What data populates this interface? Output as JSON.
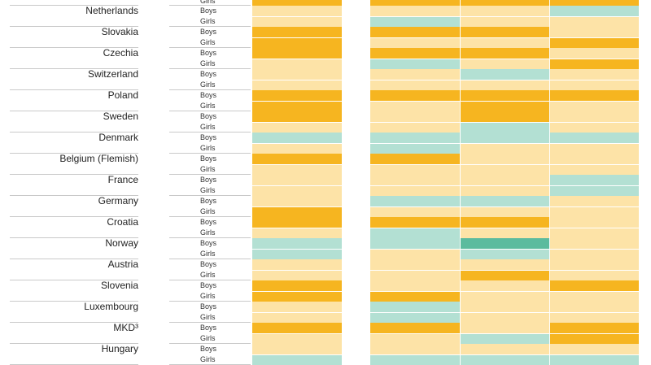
{
  "colors": {
    "high": "#f6b520",
    "mid": "#fde3a7",
    "low": "#b3e0d3",
    "lowest": "#5bbb9e"
  },
  "chart_data": {
    "type": "heatmap",
    "top_partial_row": {
      "gender": "Girls",
      "values": [
        "high",
        "high",
        "high",
        "high"
      ]
    },
    "rows": [
      {
        "country": "Netherlands",
        "boys": [
          "mid",
          "mid",
          "mid",
          "low"
        ],
        "girls": [
          "mid",
          "low",
          "mid",
          "mid"
        ]
      },
      {
        "country": "Slovakia",
        "boys": [
          "high",
          "high",
          "high",
          "mid"
        ],
        "girls": [
          "high",
          "mid",
          "mid",
          "high"
        ]
      },
      {
        "country": "Czechia",
        "boys": [
          "high",
          "high",
          "high",
          "mid"
        ],
        "girls": [
          "mid",
          "low",
          "mid",
          "high"
        ]
      },
      {
        "country": "Switzerland",
        "boys": [
          "mid",
          "mid",
          "low",
          "mid"
        ],
        "girls": [
          "mid",
          "mid",
          "mid",
          "mid"
        ]
      },
      {
        "country": "Poland",
        "boys": [
          "high",
          "high",
          "high",
          "high"
        ],
        "girls": [
          "high",
          "mid",
          "high",
          "mid"
        ]
      },
      {
        "country": "Sweden",
        "boys": [
          "high",
          "mid",
          "high",
          "mid"
        ],
        "girls": [
          "mid",
          "mid",
          "low",
          "mid"
        ]
      },
      {
        "country": "Denmark",
        "boys": [
          "low",
          "low",
          "low",
          "low"
        ],
        "girls": [
          "mid",
          "low",
          "mid",
          "mid"
        ]
      },
      {
        "country": "Belgium (Flemish)",
        "boys": [
          "high",
          "high",
          "mid",
          "mid"
        ],
        "girls": [
          "mid",
          "mid",
          "mid",
          "mid"
        ]
      },
      {
        "country": "France",
        "boys": [
          "mid",
          "mid",
          "mid",
          "low"
        ],
        "girls": [
          "mid",
          "mid",
          "mid",
          "low"
        ]
      },
      {
        "country": "Germany",
        "boys": [
          "mid",
          "low",
          "low",
          "mid"
        ],
        "girls": [
          "high",
          "mid",
          "mid",
          "mid"
        ]
      },
      {
        "country": "Croatia",
        "boys": [
          "high",
          "high",
          "high",
          "mid"
        ],
        "girls": [
          "mid",
          "low",
          "mid",
          "mid"
        ]
      },
      {
        "country": "Norway",
        "boys": [
          "low",
          "low",
          "lowest",
          "mid"
        ],
        "girls": [
          "low",
          "mid",
          "low",
          "mid"
        ]
      },
      {
        "country": "Austria",
        "boys": [
          "mid",
          "mid",
          "mid",
          "mid"
        ],
        "girls": [
          "mid",
          "mid",
          "high",
          "mid"
        ]
      },
      {
        "country": "Slovenia",
        "boys": [
          "high",
          "mid",
          "mid",
          "high"
        ],
        "girls": [
          "high",
          "high",
          "mid",
          "mid"
        ]
      },
      {
        "country": "Luxembourg",
        "boys": [
          "mid",
          "low",
          "mid",
          "mid"
        ],
        "girls": [
          "mid",
          "low",
          "mid",
          "mid"
        ]
      },
      {
        "country": "MKD³",
        "boys": [
          "high",
          "high",
          "mid",
          "high"
        ],
        "girls": [
          "mid",
          "mid",
          "low",
          "high"
        ]
      },
      {
        "country": "Hungary",
        "boys": [
          "mid",
          "mid",
          "mid",
          "mid"
        ],
        "girls": [
          "low",
          "low",
          "low",
          "low"
        ]
      }
    ],
    "gender_labels": {
      "boys": "Boys",
      "girls": "Girls"
    }
  }
}
